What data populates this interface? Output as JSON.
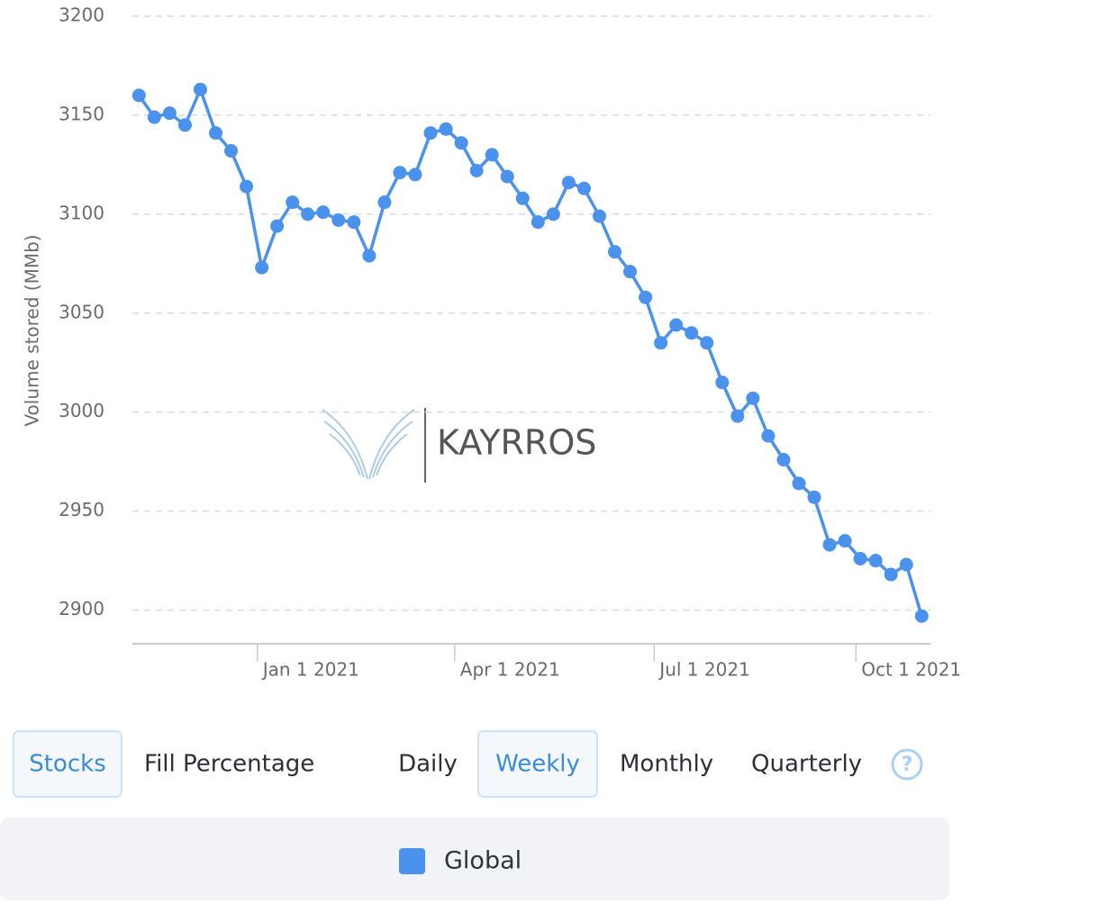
{
  "chart_data": {
    "type": "line",
    "y_label": "Volume stored (MMb)",
    "x": [
      "2020-11-08",
      "2020-11-15",
      "2020-11-22",
      "2020-11-29",
      "2020-12-06",
      "2020-12-13",
      "2020-12-20",
      "2020-12-27",
      "2021-01-03",
      "2021-01-10",
      "2021-01-17",
      "2021-01-24",
      "2021-01-31",
      "2021-02-07",
      "2021-02-14",
      "2021-02-21",
      "2021-02-28",
      "2021-03-07",
      "2021-03-14",
      "2021-03-21",
      "2021-03-28",
      "2021-04-04",
      "2021-04-11",
      "2021-04-18",
      "2021-04-25",
      "2021-05-02",
      "2021-05-09",
      "2021-05-16",
      "2021-05-23",
      "2021-05-30",
      "2021-06-06",
      "2021-06-13",
      "2021-06-20",
      "2021-06-27",
      "2021-07-04",
      "2021-07-11",
      "2021-07-18",
      "2021-07-25",
      "2021-08-01",
      "2021-08-08",
      "2021-08-15",
      "2021-08-22",
      "2021-08-29",
      "2021-09-05",
      "2021-09-12",
      "2021-09-19",
      "2021-09-26",
      "2021-10-03",
      "2021-10-10",
      "2021-10-17",
      "2021-10-24",
      "2021-10-31"
    ],
    "series": [
      {
        "name": "Global",
        "color": "#4a92ec",
        "values": [
          3160,
          3149,
          3151,
          3145,
          3163,
          3141,
          3132,
          3114,
          3073,
          3094,
          3106,
          3100,
          3101,
          3097,
          3096,
          3079,
          3106,
          3121,
          3120,
          3141,
          3143,
          3136,
          3122,
          3130,
          3119,
          3108,
          3096,
          3100,
          3116,
          3113,
          3099,
          3081,
          3071,
          3058,
          3035,
          3044,
          3040,
          3035,
          3015,
          2998,
          3007,
          2988,
          2976,
          2964,
          2957,
          2933,
          2935,
          2926,
          2925,
          2918,
          2923,
          2897
        ]
      }
    ],
    "xlim": [
      "2020-11-05",
      "2021-11-04"
    ],
    "xticks": [
      {
        "value": "2021-01-01",
        "label": "Jan 1 2021"
      },
      {
        "value": "2021-04-01",
        "label": "Apr 1 2021"
      },
      {
        "value": "2021-07-01",
        "label": "Jul 1 2021"
      },
      {
        "value": "2021-10-01",
        "label": "Oct 1 2021"
      }
    ],
    "ylim": [
      2883,
      3200
    ],
    "yticks": [
      2900,
      2950,
      3000,
      3050,
      3100,
      3150,
      3200
    ],
    "grid": true
  },
  "watermark": "KAYRROS",
  "controls": {
    "measure": [
      "Stocks",
      "Fill Percentage"
    ],
    "interval": [
      "Daily",
      "Weekly",
      "Monthly",
      "Quarterly"
    ],
    "help": "?"
  }
}
